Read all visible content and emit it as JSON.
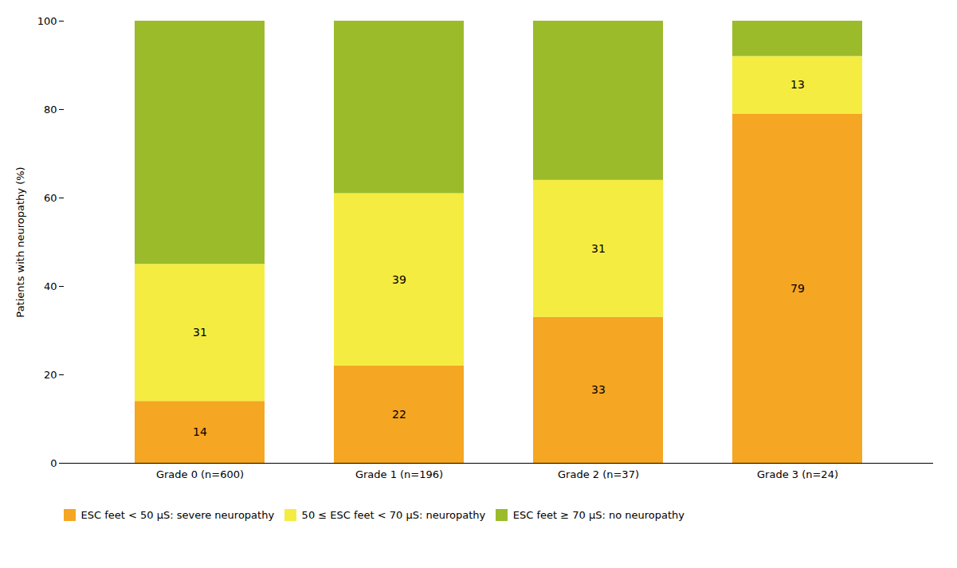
{
  "chart_data": {
    "type": "bar",
    "stacked": true,
    "categories": [
      "Grade 0 (n=600)",
      "Grade 1 (n=196)",
      "Grade 2 (n=37)",
      "Grade 3 (n=24)"
    ],
    "series": [
      {
        "name": "ESC feet < 50 μS: severe neuropathy",
        "color": "#F5A623",
        "values": [
          14,
          22,
          33,
          79
        ],
        "data_labels": true
      },
      {
        "name": "50 ≤ ESC feet < 70 μS: neuropathy",
        "color": "#F5EC42",
        "values": [
          31,
          39,
          31,
          13
        ],
        "data_labels": true
      },
      {
        "name": "ESC feet ≥ 70 μS: no neuropathy",
        "color": "#9BBB2A",
        "values": [
          55,
          39,
          36,
          8
        ],
        "data_labels": false
      }
    ],
    "ylabel": "Patients with neuropathy (%)",
    "ylim": [
      0,
      100
    ],
    "yticks": [
      0,
      20,
      40,
      60,
      80,
      100
    ],
    "grid": false,
    "legend": "bottom"
  }
}
